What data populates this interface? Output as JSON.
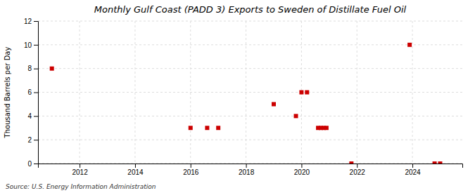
{
  "chart_data": {
    "type": "scatter",
    "title": "Monthly Gulf Coast (PADD 3) Exports to Sweden of Distillate Fuel Oil",
    "ylabel": "Thousand Barrels per Day",
    "source": "Source: U.S. Energy Information Administration",
    "color": "#cc0000",
    "marker": "square",
    "grid": true,
    "xlim": [
      2010.5,
      2025.8
    ],
    "ylim": [
      0,
      12
    ],
    "xticks": [
      2012,
      2014,
      2016,
      2018,
      2020,
      2022,
      2024
    ],
    "yticks": [
      0,
      2,
      4,
      6,
      8,
      10,
      12
    ],
    "x": [
      2011.0,
      2016.0,
      2016.6,
      2017.0,
      2019.0,
      2019.8,
      2020.0,
      2020.2,
      2020.6,
      2020.7,
      2020.8,
      2020.9,
      2021.8,
      2023.9,
      2024.8,
      2025.0
    ],
    "values": [
      8,
      3,
      3,
      3,
      5,
      4,
      6,
      6,
      3,
      3,
      3,
      3,
      0,
      10,
      0,
      0
    ]
  }
}
